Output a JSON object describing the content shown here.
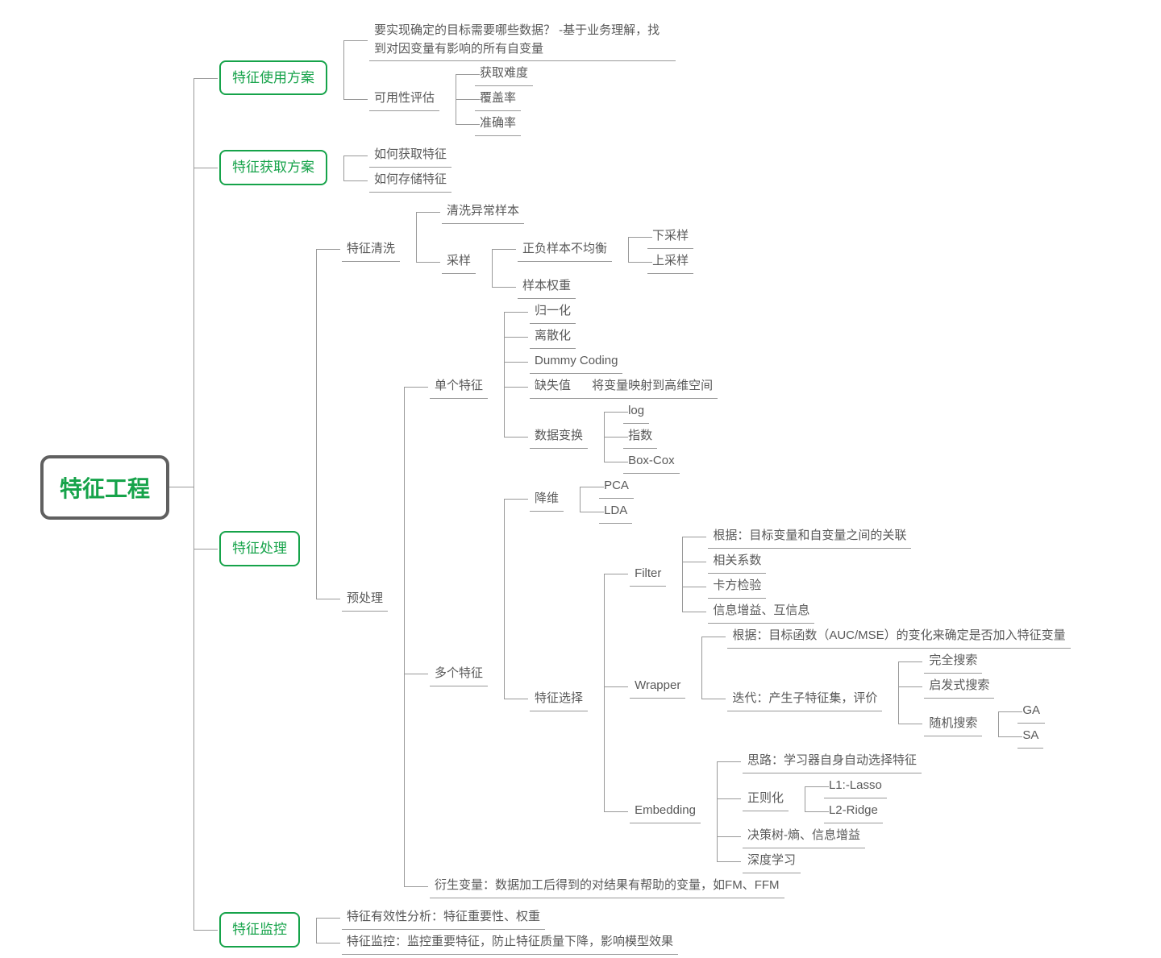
{
  "diagram": {
    "type": "tree",
    "layout": "horizontal-right",
    "background_color": "#ffffff",
    "line_color": "#999999",
    "text_color": "#595959",
    "highlight_color": "#16a34a",
    "font_family": "Microsoft YaHei",
    "root_fontsize": 28,
    "major_fontsize": 17,
    "leaf_fontsize": 15,
    "root_border_color": "#606060",
    "root_border_width": 4,
    "major_border_color": "#16a34a",
    "major_border_width": 2
  },
  "root": "特征工程",
  "b1": {
    "title": "特征使用方案",
    "q": "要实现确定的目标需要哪些数据？ -基于业务理解，找到对因变量有影响的所有自变量",
    "avail": "可用性评估",
    "a1": "获取难度",
    "a2": "覆盖率",
    "a3": "准确率"
  },
  "b2": {
    "title": "特征获取方案",
    "i1": "如何获取特征",
    "i2": "如何存储特征"
  },
  "b3": {
    "title": "特征处理",
    "clean": "特征清洗",
    "clean1": "清洗异常样本",
    "sample": "采样",
    "sample_unbal": "正负样本不均衡",
    "down": "下采样",
    "up": "上采样",
    "weight": "样本权重",
    "pre": "预处理",
    "single": "单个特征",
    "s1": "归一化",
    "s2": "离散化",
    "s3": "Dummy Coding",
    "s4": "缺失值",
    "s4_note": "将变量映射到高维空间",
    "trans": "数据变换",
    "t1": "log",
    "t2": "指数",
    "t3": "Box-Cox",
    "multi": "多个特征",
    "dim": "降维",
    "d1": "PCA",
    "d2": "LDA",
    "sel": "特征选择",
    "filter": "Filter",
    "f0": "根据：目标变量和自变量之间的关联",
    "f1": "相关系数",
    "f2": "卡方检验",
    "f3": "信息增益、互信息",
    "wrapper": "Wrapper",
    "w0": "根据：目标函数（AUC/MSE）的变化来确定是否加入特征变量",
    "w_iter": "迭代：产生子特征集，评价",
    "w1": "完全搜索",
    "w2": "启发式搜索",
    "w3": "随机搜索",
    "ga": "GA",
    "sa": "SA",
    "embed": "Embedding",
    "e0": "思路：学习器自身自动选择特征",
    "reg": "正则化",
    "r1": "L1:-Lasso",
    "r2": "L2-Ridge",
    "e2": "决策树-熵、信息增益",
    "e3": "深度学习",
    "derived": "衍生变量：数据加工后得到的对结果有帮助的变量，如FM、FFM"
  },
  "b4": {
    "title": "特征监控",
    "m1": "特征有效性分析：特征重要性、权重",
    "m2": "特征监控：监控重要特征，防止特征质量下降，影响模型效果"
  }
}
